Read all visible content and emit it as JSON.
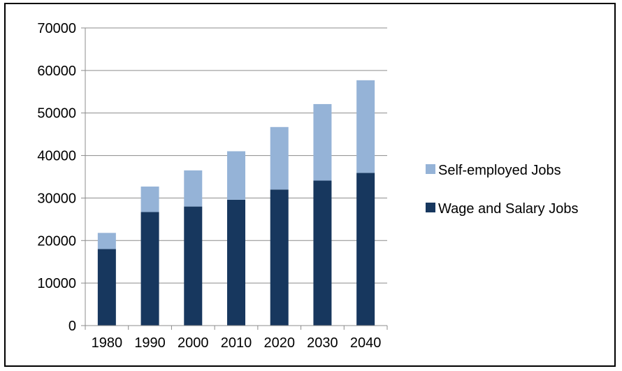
{
  "chart_data": {
    "type": "bar",
    "stacked": true,
    "categories": [
      "1980",
      "1990",
      "2000",
      "2010",
      "2020",
      "2030",
      "2040"
    ],
    "series": [
      {
        "name": "Wage and Salary Jobs",
        "color": "#17375e",
        "values": [
          18000,
          26700,
          28000,
          29600,
          32000,
          34100,
          35900
        ]
      },
      {
        "name": "Self-employed Jobs",
        "color": "#95b3d7",
        "values": [
          3800,
          6000,
          8500,
          11400,
          14700,
          18000,
          21800
        ]
      }
    ],
    "ylim": [
      0,
      70000
    ],
    "yticks": [
      "0",
      "10000",
      "20000",
      "30000",
      "40000",
      "50000",
      "60000",
      "70000"
    ],
    "grid": true,
    "legend": "right"
  }
}
